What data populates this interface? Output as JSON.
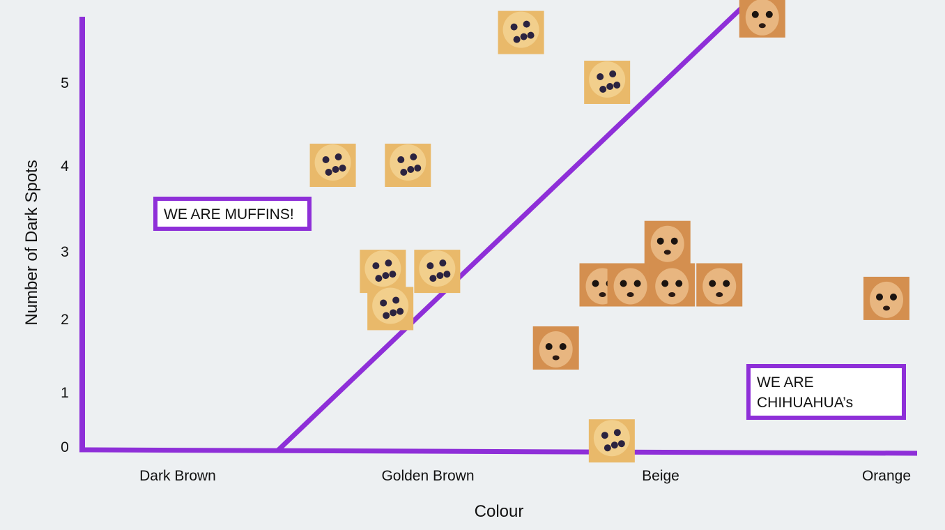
{
  "chart_data": {
    "type": "scatter",
    "xlabel": "Colour",
    "ylabel": "Number of Dark Spots",
    "categories": [
      "Dark Brown",
      "Golden Brown",
      "Beige",
      "Orange"
    ],
    "y_ticks": [
      "0",
      "1",
      "2",
      "3",
      "4",
      "5"
    ],
    "ylim": [
      0,
      5.6
    ],
    "grid": false,
    "annotations": {
      "muffins": "WE ARE MUFFINS!",
      "chihuahuas_line1": "WE ARE",
      "chihuahuas_line2": "CHIHUAHUA’s"
    },
    "decision_boundary": {
      "from": {
        "x": 0.4,
        "y": 0
      },
      "to": {
        "x": 2.46,
        "y": 6.1
      }
    },
    "series": [
      {
        "name": "muffins",
        "points": [
          {
            "x": 1.4,
            "y": 5.6
          },
          {
            "x": 1.77,
            "y": 5.0
          },
          {
            "x": 0.62,
            "y": 4.0
          },
          {
            "x": 0.92,
            "y": 4.0
          },
          {
            "x": 0.82,
            "y": 2.7
          },
          {
            "x": 1.04,
            "y": 2.7
          },
          {
            "x": 0.85,
            "y": 2.15
          },
          {
            "x": 1.79,
            "y": 0.1
          }
        ]
      },
      {
        "name": "chihuahuas",
        "points": [
          {
            "x": 2.45,
            "y": 5.8
          },
          {
            "x": 2.03,
            "y": 3.1
          },
          {
            "x": 1.75,
            "y": 2.5
          },
          {
            "x": 1.87,
            "y": 2.5
          },
          {
            "x": 2.05,
            "y": 2.5
          },
          {
            "x": 2.26,
            "y": 2.5
          },
          {
            "x": 3.0,
            "y": 2.3
          },
          {
            "x": 1.55,
            "y": 1.6
          }
        ]
      }
    ]
  },
  "colors": {
    "axis": "#8e2fd8",
    "background": "#edf0f2",
    "muffin": "#e9b96a",
    "chihuahua": "#d48f4f"
  }
}
